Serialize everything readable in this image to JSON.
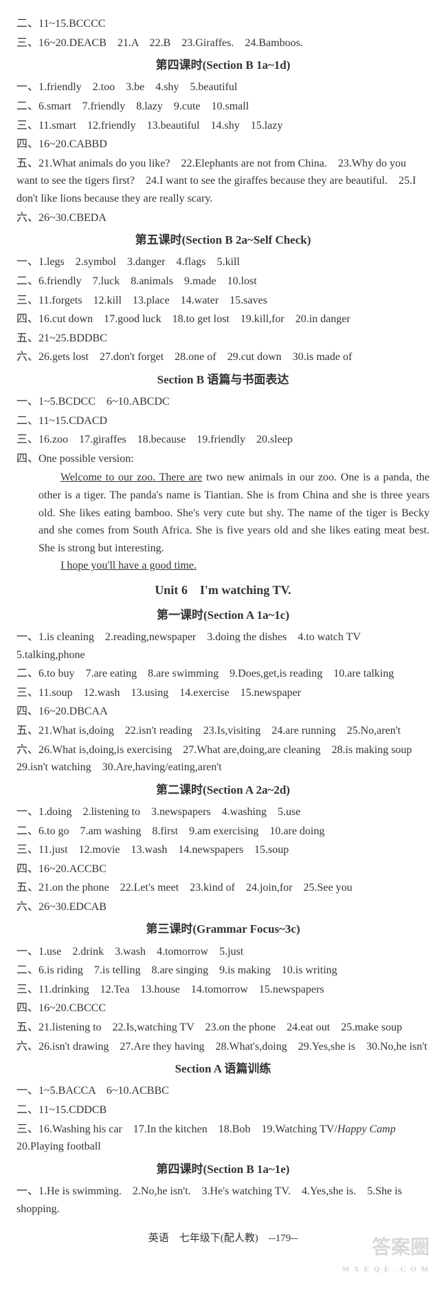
{
  "top": {
    "l1": "二、11~15.BCCCC",
    "l2": "三、16~20.DEACB　21.A　22.B　23.Giraffes.　24.Bamboos."
  },
  "s4": {
    "heading": "第四课时(Section B 1a~1d)",
    "l1": "一、1.friendly　2.too　3.be　4.shy　5.beautiful",
    "l2": "二、6.smart　7.friendly　8.lazy　9.cute　10.small",
    "l3": "三、11.smart　12.friendly　13.beautiful　14.shy　15.lazy",
    "l4": "四、16~20.CABBD",
    "l5": "五、21.What animals do you like?　22.Elephants are not from China.　23.Why do you want to see the tigers first?　24.I want to see the giraffes because they are beautiful.　25.I don't like lions because they are really scary.",
    "l6": "六、26~30.CBEDA"
  },
  "s5": {
    "heading": "第五课时(Section B 2a~Self Check)",
    "l1": "一、1.legs　2.symbol　3.danger　4.flags　5.kill",
    "l2": "二、6.friendly　7.luck　8.animals　9.made　10.lost",
    "l3": "三、11.forgets　12.kill　13.place　14.water　15.saves",
    "l4": "四、16.cut down　17.good luck　18.to get lost　19.kill,for　20.in danger",
    "l5": "五、21~25.BDDBC",
    "l6": "六、26.gets lost　27.don't forget　28.one of　29.cut down　30.is made of"
  },
  "sb": {
    "heading": "Section B 语篇与书面表达",
    "l1": "一、1~5.BCDCC　6~10.ABCDC",
    "l2": "二、11~15.CDACD",
    "l3": "三、16.zoo　17.giraffes　18.because　19.friendly　20.sleep",
    "l4": "四、One possible version:",
    "essay_u1": "Welcome to our zoo. There are",
    "essay_r1": " two new animals in our zoo. One is a panda, the other is a tiger. The panda's name is Tiantian. She is from China and she is three years old. She likes eating bamboo. She's very cute but shy. The name of the tiger is Becky and she comes from South Africa. She is five years old and she likes eating meat best. She is strong but interesting.",
    "essay_u2": "I hope you'll have a good time."
  },
  "u6": {
    "title": "Unit 6　I'm watching TV."
  },
  "u6s1": {
    "heading": "第一课时(Section A 1a~1c)",
    "l1": "一、1.is cleaning　2.reading,newspaper　3.doing the dishes　4.to watch TV　5.talking,phone",
    "l2": "二、6.to buy　7.are eating　8.are swimming　9.Does,get,is reading　10.are talking",
    "l3": "三、11.soup　12.wash　13.using　14.exercise　15.newspaper",
    "l4": "四、16~20.DBCAA",
    "l5": "五、21.What is,doing　22.isn't reading　23.Is,visiting　24.are running　25.No,aren't",
    "l6": "六、26.What is,doing,is exercising　27.What are,doing,are cleaning　28.is making soup　29.isn't watching　30.Are,having/eating,aren't"
  },
  "u6s2": {
    "heading": "第二课时(Section A 2a~2d)",
    "l1": "一、1.doing　2.listening to　3.newspapers　4.washing　5.use",
    "l2": "二、6.to go　7.am washing　8.first　9.am exercising　10.are doing",
    "l3": "三、11.just　12.movie　13.wash　14.newspapers　15.soup",
    "l4": "四、16~20.ACCBC",
    "l5": "五、21.on the phone　22.Let's meet　23.kind of　24.join,for　25.See you",
    "l6": "六、26~30.EDCAB"
  },
  "u6s3": {
    "heading": "第三课时(Grammar Focus~3c)",
    "l1": "一、1.use　2.drink　3.wash　4.tomorrow　5.just",
    "l2": "二、6.is riding　7.is telling　8.are singing　9.is making　10.is writing",
    "l3": "三、11.drinking　12.Tea　13.house　14.tomorrow　15.newspapers",
    "l4": "四、16~20.CBCCC",
    "l5": "五、21.listening to　22.Is,watching TV　23.on the phone　24.eat out　25.make soup",
    "l6": "六、26.isn't drawing　27.Are they having　28.What's,doing　29.Yes,she is　30.No,he isn't"
  },
  "u6sa": {
    "heading": "Section A 语篇训练",
    "l1": "一、1~5.BACCA　6~10.ACBBC",
    "l2": "二、11~15.CDDCB",
    "l3a": "三、16.Washing his car　17.In the kitchen　18.Bob　19.Watching TV/",
    "l3b": "Happy Camp",
    "l3c": "　20.Playing football"
  },
  "u6s4": {
    "heading": "第四课时(Section B 1a~1e)",
    "l1": "一、1.He is swimming.　2.No,he isn't.　3.He's watching TV.　4.Yes,she is.　5.She is shopping."
  },
  "footer": "英语　七年级下(配人教)　--179--",
  "wm": {
    "big": "答案圈",
    "small": "M X E Q E . C O M"
  }
}
